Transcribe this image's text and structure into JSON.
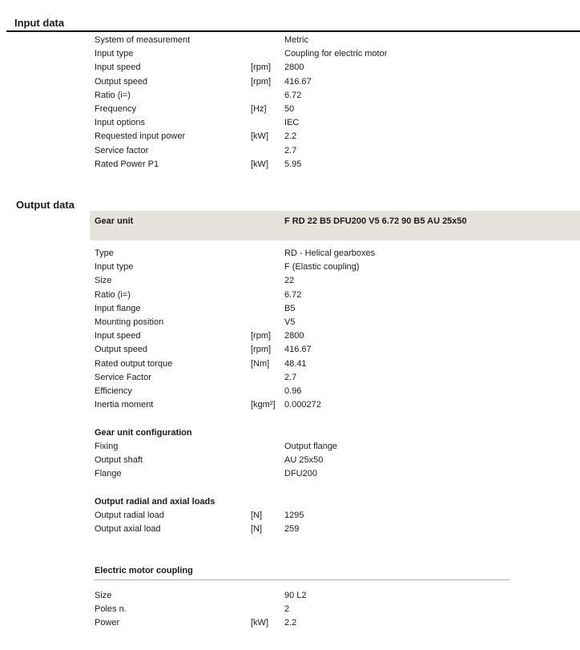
{
  "input_section": {
    "title": "Input data",
    "rows": [
      {
        "label": "System of measurement",
        "unit": "",
        "value": "Metric"
      },
      {
        "label": "Input type",
        "unit": "",
        "value": "Coupling for electric motor"
      },
      {
        "label": "Input speed",
        "unit": "[rpm]",
        "value": "2800"
      },
      {
        "label": "Output speed",
        "unit": "[rpm]",
        "value": "416.67"
      },
      {
        "label": "Ratio (i=)",
        "unit": "",
        "value": "6.72"
      },
      {
        "label": "Frequency",
        "unit": "[Hz]",
        "value": "50"
      },
      {
        "label": "Input options",
        "unit": "",
        "value": "IEC"
      },
      {
        "label": "Requested input power",
        "unit": "[kW]",
        "value": "2.2"
      },
      {
        "label": "Service factor",
        "unit": "",
        "value": "2.7"
      },
      {
        "label": "Rated Power P1",
        "unit": "[kW]",
        "value": "5.95"
      }
    ]
  },
  "output_section": {
    "title": "Output data",
    "gear_unit": {
      "label": "Gear unit",
      "value": "F RD 22 B5 DFU200 V5 6.72 90 B5 AU 25x50"
    },
    "rows": [
      {
        "label": "Type",
        "unit": "",
        "value": "RD - Helical gearboxes"
      },
      {
        "label": "Input type",
        "unit": "",
        "value": "F (Elastic coupling)"
      },
      {
        "label": "Size",
        "unit": "",
        "value": "22"
      },
      {
        "label": "Ratio (i=)",
        "unit": "",
        "value": "6.72"
      },
      {
        "label": "Input flange",
        "unit": "",
        "value": "B5"
      },
      {
        "label": "Mounting position",
        "unit": "",
        "value": "V5"
      },
      {
        "label": "Input speed",
        "unit": "[rpm]",
        "value": "2800"
      },
      {
        "label": "Output speed",
        "unit": "[rpm]",
        "value": "416.67"
      },
      {
        "label": "Rated output torque",
        "unit": "[Nm]",
        "value": "48.41"
      },
      {
        "label": "Service Factor",
        "unit": "",
        "value": "2.7"
      },
      {
        "label": "Efficiency",
        "unit": "",
        "value": "0.96"
      },
      {
        "label": "Inertia moment",
        "unit": "[kgm²]",
        "value": "0.000272"
      }
    ],
    "subsections": [
      {
        "title": "Gear unit configuration",
        "rows": [
          {
            "label": "Fixing",
            "unit": "",
            "value": "Output flange"
          },
          {
            "label": "Output shaft",
            "unit": "",
            "value": "AU 25x50"
          },
          {
            "label": "Flange",
            "unit": "",
            "value": "DFU200"
          }
        ]
      },
      {
        "title": "Output radial and axial loads",
        "rows": [
          {
            "label": "Output radial load",
            "unit": "[N]",
            "value": "1295"
          },
          {
            "label": "Output axial load",
            "unit": "[N]",
            "value": "259"
          }
        ]
      },
      {
        "title": "Electric motor coupling",
        "rows": [
          {
            "label": "Size",
            "unit": "",
            "value": "90 L2"
          },
          {
            "label": "Poles n.",
            "unit": "",
            "value": "2"
          },
          {
            "label": "Power",
            "unit": "[kW]",
            "value": "2.2"
          }
        ]
      }
    ]
  },
  "colors": {
    "gear_header_bg": "#e4e2da",
    "title_rule": "#000000",
    "subsection_rule": "#b0b0b0",
    "text": "#1b1b1b"
  }
}
